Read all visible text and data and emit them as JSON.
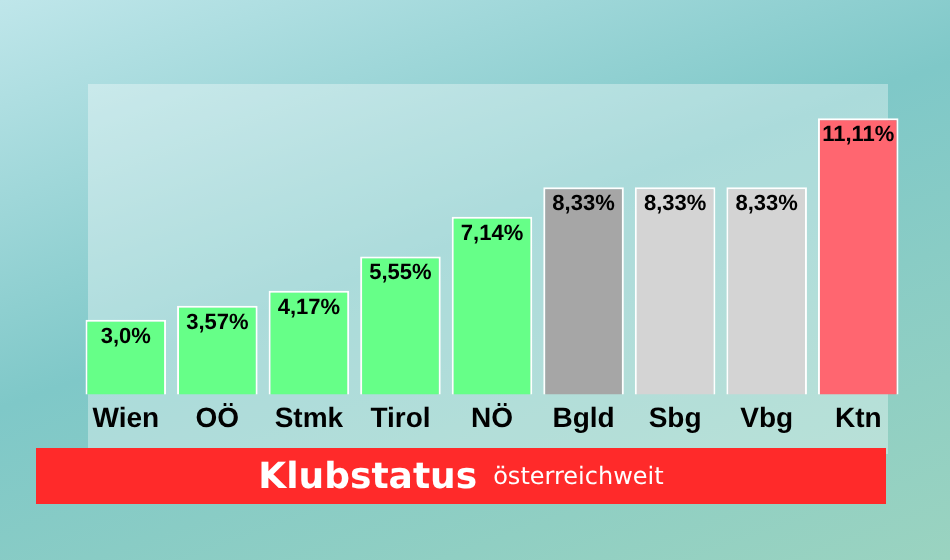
{
  "chart_data": {
    "type": "bar",
    "title": "Klubstatus",
    "subtitle": "österreichweit",
    "categories": [
      "Wien",
      "OÖ",
      "Stmk",
      "Tirol",
      "NÖ",
      "Bgld",
      "Sbg",
      "Vbg",
      "Ktn"
    ],
    "values": [
      3.0,
      3.57,
      4.17,
      5.55,
      7.14,
      8.33,
      8.33,
      8.33,
      11.11
    ],
    "value_labels": [
      "3,0%",
      "3,57%",
      "4,17%",
      "5,55%",
      "7,14%",
      "8,33%",
      "8,33%",
      "8,33%",
      "11,11%"
    ],
    "colors": [
      "#66ff88",
      "#66ff88",
      "#66ff88",
      "#66ff88",
      "#66ff88",
      "#a6a6a6",
      "#d4d4d4",
      "#d4d4d4",
      "#ff6670"
    ],
    "tick_labels": "x",
    "grid": false,
    "legend": false
  }
}
